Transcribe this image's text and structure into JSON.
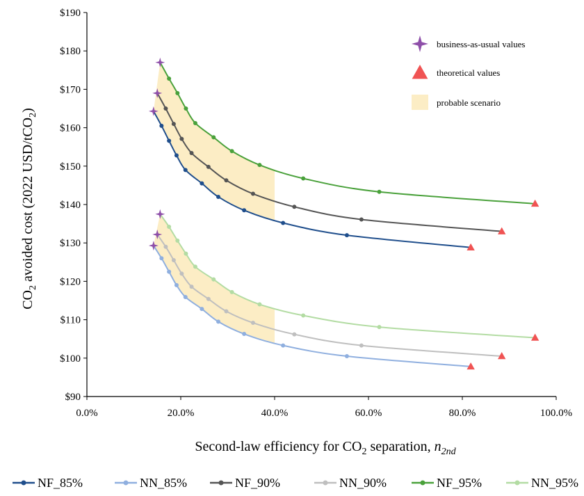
{
  "chart_data": {
    "type": "line",
    "xlabel": "Second-law efficiency for CO",
    "xlabel_sub": "2",
    "xlabel_tail": " separation, ",
    "xlabel_symbol": "n",
    "xlabel_symbol_sub": "2nd",
    "ylabel_pre": "CO",
    "ylabel_sub1": "2",
    "ylabel_mid": " avoided cost   (2022 USD/tCO",
    "ylabel_sub2": "2",
    "ylabel_post": ")",
    "xlim": [
      0,
      100
    ],
    "ylim": [
      90,
      190
    ],
    "x_ticks": [
      0,
      20,
      40,
      60,
      80,
      100
    ],
    "x_tick_labels": [
      "0.0%",
      "20.0%",
      "40.0%",
      "60.0%",
      "80.0%",
      "100.0%"
    ],
    "y_ticks": [
      90,
      100,
      110,
      120,
      130,
      140,
      150,
      160,
      170,
      180,
      190
    ],
    "y_tick_labels": [
      "$90",
      "$100",
      "$110",
      "$120",
      "$130",
      "$140",
      "$150",
      "$160",
      "$170",
      "$180",
      "$190"
    ],
    "grid": "none",
    "legend_position": "top-right",
    "legend_items": [
      {
        "label": "business-as-usual values",
        "marker": "star",
        "color": "#8e4fa9"
      },
      {
        "label": "theoretical values",
        "marker": "triangle",
        "color": "#f05353"
      },
      {
        "label": "probable scenario",
        "marker": "box",
        "color": "#fcedc5"
      }
    ],
    "shaded_region": {
      "x_max": 40,
      "color": "#fcedc5"
    },
    "bau_marker_color": "#8e4fa9",
    "theoretical_marker_color": "#f05353",
    "series": [
      {
        "name": "NF_85%",
        "color": "#1f4e8c",
        "x": [
          14.2,
          15.9,
          17.5,
          19.1,
          21.0,
          24.5,
          28.0,
          33.5,
          41.8,
          55.4,
          81.8
        ],
        "y": [
          164.3,
          160.5,
          156.6,
          152.8,
          149.0,
          145.5,
          142.0,
          138.5,
          135.2,
          132.0,
          128.8
        ]
      },
      {
        "name": "NN_85%",
        "color": "#8fafdf",
        "x": [
          14.2,
          15.9,
          17.5,
          19.1,
          21.0,
          24.5,
          28.0,
          33.5,
          41.8,
          55.4,
          81.8
        ],
        "y": [
          129.3,
          126.0,
          122.5,
          119.0,
          115.9,
          112.8,
          109.5,
          106.3,
          103.3,
          100.5,
          97.8
        ]
      },
      {
        "name": "NF_90%",
        "color": "#555555",
        "x": [
          15.0,
          16.8,
          18.5,
          20.2,
          22.3,
          25.9,
          29.7,
          35.4,
          44.2,
          58.5,
          88.4
        ],
        "y": [
          169.0,
          165.0,
          161.0,
          157.1,
          153.4,
          149.8,
          146.3,
          142.8,
          139.4,
          136.1,
          133.0
        ]
      },
      {
        "name": "NN_90%",
        "color": "#bfbfbf",
        "x": [
          15.0,
          16.8,
          18.5,
          20.2,
          22.3,
          25.9,
          29.7,
          35.4,
          44.2,
          58.5,
          88.4
        ],
        "y": [
          132.2,
          129.0,
          125.5,
          122.0,
          118.6,
          115.4,
          112.2,
          109.2,
          106.2,
          103.3,
          100.5
        ]
      },
      {
        "name": "NF_95%",
        "color": "#4aa13b",
        "x": [
          15.6,
          17.5,
          19.3,
          21.1,
          23.1,
          27.0,
          30.9,
          36.8,
          46.1,
          62.3,
          95.5
        ],
        "y": [
          177.0,
          172.8,
          169.0,
          165.0,
          161.2,
          157.5,
          153.9,
          150.3,
          146.8,
          143.3,
          140.2
        ]
      },
      {
        "name": "NN_95%",
        "color": "#b3dca3",
        "x": [
          15.6,
          17.5,
          19.3,
          21.1,
          23.1,
          27.0,
          30.9,
          36.8,
          46.1,
          62.3,
          95.5
        ],
        "y": [
          137.5,
          134.2,
          130.6,
          127.2,
          123.8,
          120.5,
          117.2,
          114.0,
          111.1,
          108.1,
          105.3
        ]
      }
    ]
  }
}
